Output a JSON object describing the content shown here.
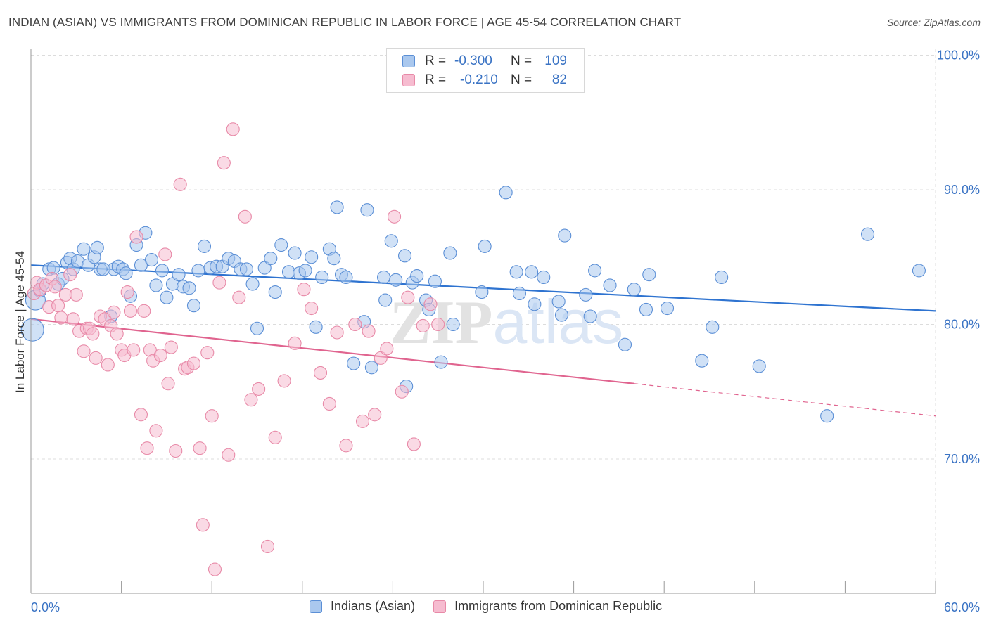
{
  "title": "INDIAN (ASIAN) VS IMMIGRANTS FROM DOMINICAN REPUBLIC IN LABOR FORCE | AGE 45-54 CORRELATION CHART",
  "source": "Source: ZipAtlas.com",
  "watermark": "ZIPatlas",
  "colors": {
    "blue_fill": "#aac8ee",
    "blue_stroke": "#5b8fd6",
    "blue_line": "#2e73d0",
    "pink_fill": "#f6bcd0",
    "pink_stroke": "#e88aa8",
    "pink_line": "#e0648f",
    "axis_text": "#3a73c4",
    "grid": "#dcdcdc"
  },
  "legend": {
    "rows": [
      {
        "r_label": "R =",
        "r_value": "-0.300",
        "n_label": "N =",
        "n_value": "109"
      },
      {
        "r_label": "R =",
        "r_value": "-0.210",
        "n_label": "N =",
        "n_value": "82"
      }
    ]
  },
  "bottom_legend": [
    "Indians (Asian)",
    "Immigrants from Dominican Republic"
  ],
  "chart_data": {
    "type": "scatter",
    "xlabel": "",
    "ylabel": "In Labor Force | Age 45-54",
    "xlim": [
      0,
      60
    ],
    "ylim": [
      60,
      104
    ],
    "x_tick_labels": {
      "left": "0.0%",
      "right": "60.0%"
    },
    "y_ticks": [
      {
        "value": 100,
        "label": "100.0%"
      },
      {
        "value": 90,
        "label": "90.0%"
      },
      {
        "value": 80,
        "label": "80.0%"
      },
      {
        "value": 70,
        "label": "70.0%"
      }
    ],
    "grid": true,
    "legend_position": "top-center",
    "series": [
      {
        "name": "Indians (Asian)",
        "color": "blue",
        "trend": {
          "x": [
            0,
            60
          ],
          "y": [
            84.4,
            81.0
          ],
          "solid_to": 60
        },
        "points": [
          [
            0.1,
            79.6
          ],
          [
            0.3,
            81.8
          ],
          [
            0.6,
            82.5
          ],
          [
            0.8,
            83.0
          ],
          [
            1.2,
            84.1
          ],
          [
            1.5,
            84.2
          ],
          [
            1.8,
            83.0
          ],
          [
            2.1,
            83.4
          ],
          [
            2.4,
            84.6
          ],
          [
            2.6,
            84.9
          ],
          [
            2.8,
            84.1
          ],
          [
            3.1,
            84.7
          ],
          [
            3.5,
            85.6
          ],
          [
            3.8,
            84.4
          ],
          [
            4.2,
            85.0
          ],
          [
            4.4,
            85.7
          ],
          [
            4.6,
            84.1
          ],
          [
            4.8,
            84.1
          ],
          [
            5.3,
            80.6
          ],
          [
            5.5,
            84.1
          ],
          [
            5.8,
            84.3
          ],
          [
            6.1,
            84.1
          ],
          [
            6.3,
            83.8
          ],
          [
            6.6,
            82.1
          ],
          [
            7.0,
            85.9
          ],
          [
            7.3,
            84.4
          ],
          [
            7.6,
            86.8
          ],
          [
            8.0,
            84.8
          ],
          [
            8.3,
            82.9
          ],
          [
            8.7,
            84.0
          ],
          [
            9.0,
            82.0
          ],
          [
            9.4,
            83.0
          ],
          [
            9.8,
            83.7
          ],
          [
            10.1,
            82.8
          ],
          [
            10.5,
            82.7
          ],
          [
            10.8,
            81.4
          ],
          [
            11.1,
            84.0
          ],
          [
            11.5,
            85.8
          ],
          [
            11.9,
            84.2
          ],
          [
            12.3,
            84.3
          ],
          [
            12.7,
            84.3
          ],
          [
            13.1,
            84.9
          ],
          [
            13.5,
            84.7
          ],
          [
            13.9,
            84.1
          ],
          [
            14.3,
            84.1
          ],
          [
            14.7,
            83.0
          ],
          [
            15.0,
            79.7
          ],
          [
            15.5,
            84.2
          ],
          [
            15.9,
            84.9
          ],
          [
            16.2,
            82.4
          ],
          [
            16.6,
            85.9
          ],
          [
            17.1,
            83.9
          ],
          [
            17.5,
            85.3
          ],
          [
            17.8,
            83.8
          ],
          [
            18.2,
            84.0
          ],
          [
            18.6,
            85.0
          ],
          [
            18.9,
            79.8
          ],
          [
            19.3,
            83.5
          ],
          [
            19.8,
            85.6
          ],
          [
            20.1,
            84.9
          ],
          [
            20.3,
            88.7
          ],
          [
            20.6,
            83.7
          ],
          [
            20.9,
            83.5
          ],
          [
            21.4,
            77.1
          ],
          [
            22.1,
            80.2
          ],
          [
            22.3,
            88.5
          ],
          [
            22.6,
            76.8
          ],
          [
            23.4,
            83.5
          ],
          [
            23.5,
            81.8
          ],
          [
            23.9,
            86.2
          ],
          [
            24.2,
            83.3
          ],
          [
            24.8,
            85.1
          ],
          [
            24.9,
            75.4
          ],
          [
            25.3,
            83.1
          ],
          [
            25.6,
            83.6
          ],
          [
            26.2,
            81.8
          ],
          [
            26.4,
            81.1
          ],
          [
            26.8,
            83.2
          ],
          [
            27.2,
            77.2
          ],
          [
            27.8,
            85.3
          ],
          [
            28.0,
            80.0
          ],
          [
            29.9,
            82.4
          ],
          [
            30.1,
            85.8
          ],
          [
            31.5,
            89.8
          ],
          [
            32.2,
            83.9
          ],
          [
            32.4,
            82.3
          ],
          [
            33.2,
            83.9
          ],
          [
            33.4,
            81.5
          ],
          [
            34.0,
            83.5
          ],
          [
            35.0,
            81.7
          ],
          [
            35.2,
            80.7
          ],
          [
            35.4,
            86.6
          ],
          [
            36.8,
            82.2
          ],
          [
            37.1,
            80.6
          ],
          [
            37.4,
            84.0
          ],
          [
            38.4,
            82.9
          ],
          [
            39.4,
            78.5
          ],
          [
            40.0,
            82.6
          ],
          [
            40.8,
            81.1
          ],
          [
            41.0,
            83.7
          ],
          [
            42.2,
            81.2
          ],
          [
            44.5,
            77.3
          ],
          [
            45.2,
            79.8
          ],
          [
            45.8,
            83.5
          ],
          [
            48.3,
            76.9
          ],
          [
            52.8,
            73.2
          ],
          [
            55.5,
            86.7
          ],
          [
            58.9,
            84.0
          ]
        ]
      },
      {
        "name": "Immigrants from Dominican Republic",
        "color": "pink",
        "trend": {
          "x": [
            0,
            60
          ],
          "y": [
            80.4,
            73.2
          ],
          "solid_to": 40
        },
        "points": [
          [
            0.2,
            82.3
          ],
          [
            0.4,
            83.1
          ],
          [
            0.6,
            82.6
          ],
          [
            1.0,
            82.9
          ],
          [
            1.2,
            81.3
          ],
          [
            1.4,
            83.4
          ],
          [
            1.6,
            82.8
          ],
          [
            1.8,
            81.4
          ],
          [
            2.0,
            80.5
          ],
          [
            2.3,
            82.2
          ],
          [
            2.6,
            83.7
          ],
          [
            2.8,
            80.4
          ],
          [
            3.0,
            82.2
          ],
          [
            3.2,
            79.5
          ],
          [
            3.5,
            78.0
          ],
          [
            3.7,
            79.7
          ],
          [
            3.9,
            79.7
          ],
          [
            4.1,
            79.3
          ],
          [
            4.3,
            77.5
          ],
          [
            4.6,
            80.6
          ],
          [
            4.9,
            80.4
          ],
          [
            5.1,
            77.0
          ],
          [
            5.3,
            79.9
          ],
          [
            5.5,
            80.9
          ],
          [
            5.7,
            79.3
          ],
          [
            6.0,
            78.1
          ],
          [
            6.2,
            77.7
          ],
          [
            6.4,
            82.4
          ],
          [
            6.6,
            81.0
          ],
          [
            6.8,
            78.1
          ],
          [
            7.0,
            86.5
          ],
          [
            7.3,
            73.3
          ],
          [
            7.5,
            81.0
          ],
          [
            7.7,
            70.8
          ],
          [
            7.9,
            78.1
          ],
          [
            8.1,
            77.3
          ],
          [
            8.3,
            72.1
          ],
          [
            8.6,
            77.7
          ],
          [
            8.9,
            85.2
          ],
          [
            9.1,
            75.6
          ],
          [
            9.3,
            78.3
          ],
          [
            9.6,
            70.6
          ],
          [
            9.9,
            90.4
          ],
          [
            10.2,
            76.7
          ],
          [
            10.4,
            76.8
          ],
          [
            10.8,
            77.1
          ],
          [
            11.2,
            70.8
          ],
          [
            11.4,
            65.1
          ],
          [
            11.7,
            77.9
          ],
          [
            12.0,
            73.2
          ],
          [
            12.2,
            61.8
          ],
          [
            12.5,
            83.1
          ],
          [
            12.8,
            92.0
          ],
          [
            13.1,
            70.3
          ],
          [
            13.4,
            94.5
          ],
          [
            13.8,
            82.0
          ],
          [
            14.2,
            88.0
          ],
          [
            14.6,
            74.4
          ],
          [
            15.1,
            75.2
          ],
          [
            15.7,
            63.5
          ],
          [
            16.2,
            71.6
          ],
          [
            16.8,
            75.8
          ],
          [
            17.5,
            78.6
          ],
          [
            18.1,
            82.6
          ],
          [
            18.6,
            81.2
          ],
          [
            19.2,
            76.4
          ],
          [
            19.8,
            74.1
          ],
          [
            20.3,
            79.4
          ],
          [
            20.9,
            71.0
          ],
          [
            21.5,
            80.0
          ],
          [
            22.0,
            72.8
          ],
          [
            22.4,
            79.5
          ],
          [
            22.8,
            73.3
          ],
          [
            23.2,
            77.5
          ],
          [
            23.6,
            78.2
          ],
          [
            24.1,
            88.0
          ],
          [
            24.6,
            75.0
          ],
          [
            25.0,
            82.0
          ],
          [
            25.4,
            71.1
          ],
          [
            26.0,
            79.9
          ],
          [
            26.5,
            81.5
          ],
          [
            27.0,
            80.0
          ]
        ]
      }
    ]
  }
}
